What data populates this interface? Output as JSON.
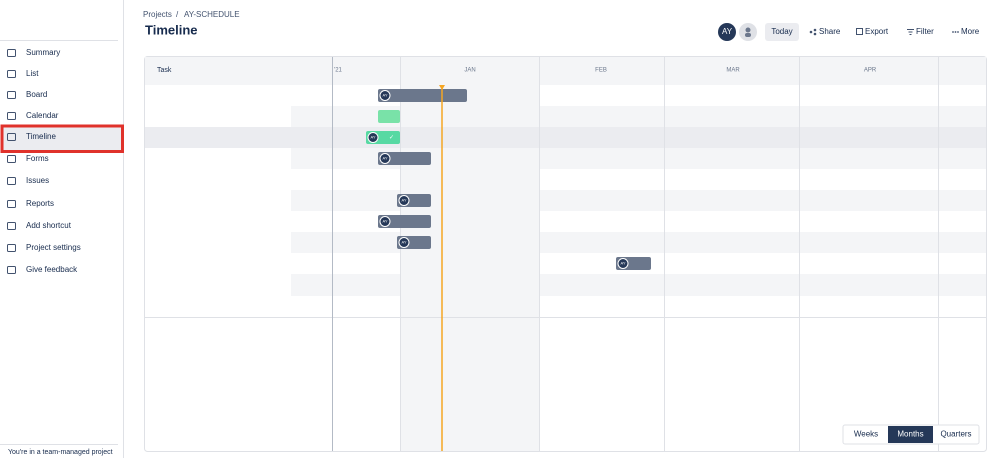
{
  "breadcrumb": {
    "projects": "Projects",
    "separator": "/",
    "project": "AY-SCHEDULE"
  },
  "title": "Timeline",
  "toolbar": {
    "avatar": "AY",
    "today": "Today",
    "share": "Share",
    "export": "Export",
    "filter": "Filter",
    "more": "More"
  },
  "sidebar": {
    "items": [
      "Summary",
      "List",
      "Board",
      "Calendar",
      "Timeline",
      "Forms",
      "Issues",
      "Reports",
      "Add shortcut",
      "Project settings",
      "Give feedback"
    ],
    "footer": "You're in a team-managed project"
  },
  "timeline": {
    "task_header": "Task",
    "columns": [
      "'21",
      "JAN",
      "FEB",
      "MAR",
      "APR"
    ],
    "bar_avatars": [
      "AY",
      "AY",
      "AY",
      "AY",
      "AY",
      "AY",
      "AY"
    ]
  },
  "view_toggle": [
    "Weeks",
    "Months",
    "Quarters"
  ]
}
